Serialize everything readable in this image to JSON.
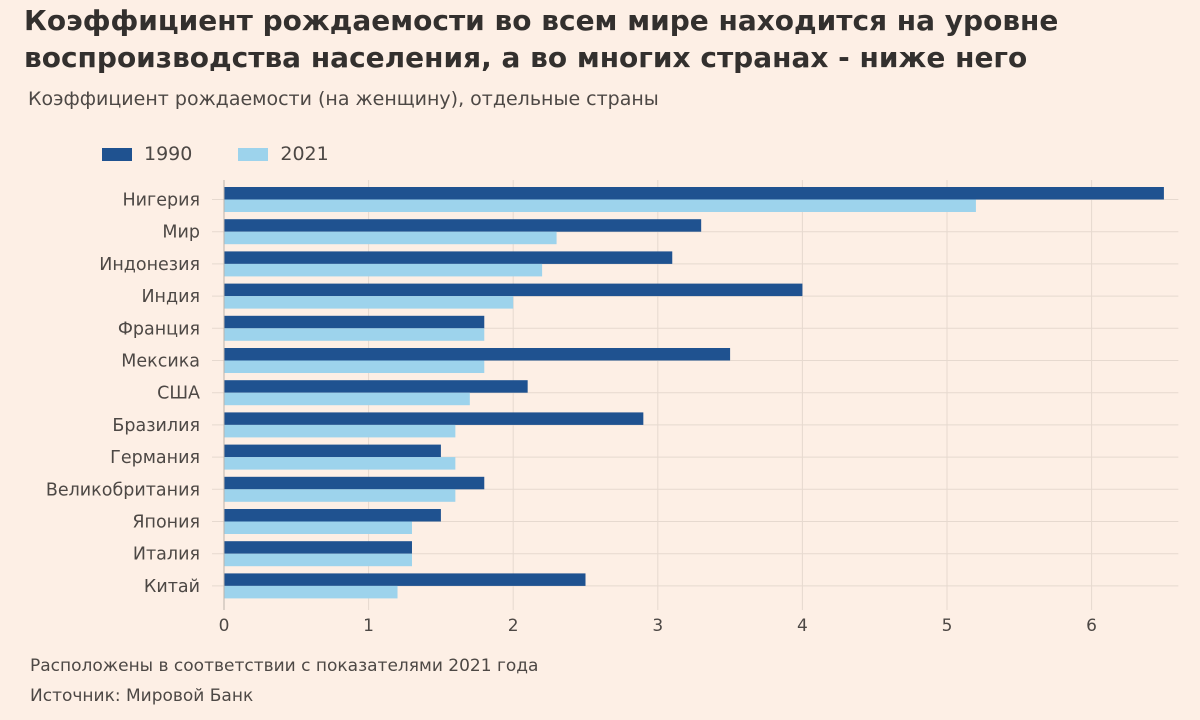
{
  "title": "Коэффициент рождаемости во всем мире находится на уровне воспроизводства населения, а во многих странах - ниже него",
  "subtitle": "Коэффициент рождаемости (на женщину), отдельные страны",
  "colors": {
    "s1990": "#1f5290",
    "s2021": "#9dd3ec",
    "background": "#fdefe5",
    "grid": "#e6d9cf"
  },
  "footer": {
    "note": "Расположены в соответствии с показателями 2021 года",
    "source": "Источник: Мировой Банк"
  },
  "chart_data": {
    "type": "bar",
    "orientation": "horizontal",
    "title": "Коэффициент рождаемости во всем мире находится на уровне воспроизводства населения, а во многих странах - ниже него",
    "subtitle": "Коэффициент рождаемости (на женщину), отдельные страны",
    "xlabel": "",
    "ylabel": "",
    "xlim": [
      0,
      6.6
    ],
    "xticks": [
      0,
      1,
      2,
      3,
      4,
      5,
      6
    ],
    "grid": true,
    "legend_position": "top-left",
    "categories": [
      "Нигерия",
      "Мир",
      "Индонезия",
      "Индия",
      "Франция",
      "Мексика",
      "США",
      "Бразилия",
      "Германия",
      "Великобритания",
      "Япония",
      "Италия",
      "Китай"
    ],
    "series": [
      {
        "name": "1990",
        "values": [
          6.5,
          3.3,
          3.1,
          4.0,
          1.8,
          3.5,
          2.1,
          2.9,
          1.5,
          1.8,
          1.5,
          1.3,
          2.5
        ]
      },
      {
        "name": "2021",
        "values": [
          5.2,
          2.3,
          2.2,
          2.0,
          1.8,
          1.8,
          1.7,
          1.6,
          1.6,
          1.6,
          1.3,
          1.3,
          1.2
        ]
      }
    ]
  }
}
